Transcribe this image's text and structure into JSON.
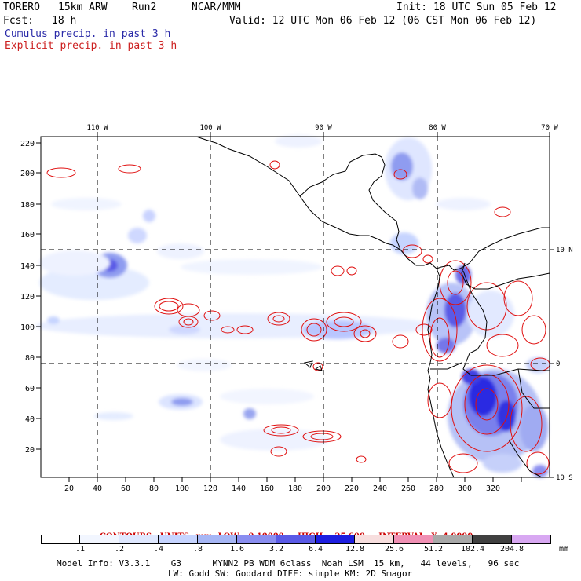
{
  "header": {
    "model": "TORERO",
    "resolution": "15km ARW",
    "run": "Run2",
    "org": "NCAR/MMM",
    "init": "Init: 18 UTC Sun 05 Feb 12",
    "fcst_label": "Fcst:",
    "fcst_value": "18 h",
    "valid": "Valid: 12 UTC Mon 06 Feb 12 (06 CST Mon 06 Feb 12)",
    "cumulus": "Cumulus precip. in past 3 h",
    "explicit": "Explicit precip. in past 3 h"
  },
  "map": {
    "lon_labels": [
      "110 W",
      "100 W",
      "90 W",
      "80 W",
      "70 W"
    ],
    "lat_labels": [
      "10 N",
      "0",
      "10 S"
    ],
    "y_ticks": [
      "220",
      "200",
      "180",
      "160",
      "140",
      "120",
      "100",
      "80",
      "60",
      "40",
      "20"
    ],
    "x_ticks": [
      "20",
      "40",
      "60",
      "80",
      "100",
      "120",
      "140",
      "160",
      "180",
      "200",
      "220",
      "240",
      "260",
      "280",
      "300",
      "320"
    ],
    "colors": {
      "cumulus": "#2a2aa8",
      "explicit": "#e01010",
      "coast": "#000000"
    }
  },
  "contours": {
    "label": "CONTOURS:",
    "units": "UNITS=mm",
    "low": "LOW= 0.10000",
    "high": "HIGH=  25.600",
    "interval": "INTERVAL=X  4.0000"
  },
  "legend": {
    "labels": [
      ".1",
      ".2",
      ".4",
      ".8",
      "1.6",
      "3.2",
      "6.4",
      "12.8",
      "25.6",
      "51.2",
      "102.4",
      "204.8"
    ],
    "colors": [
      "#ffffff",
      "#f2f6ff",
      "#dfe8ff",
      "#c6d4ff",
      "#a6b6f5",
      "#8a8ef0",
      "#5a5ae6",
      "#1e1ee0",
      "#f7dede",
      "#f090b4",
      "#a8a8a8",
      "#404040",
      "#d8a8f2"
    ],
    "unit": "mm"
  },
  "footer": {
    "line1": "Model Info: V3.3.1    G3      MYNN2 PB WDM 6class  Noah LSM  15 km,   44 levels,   96 sec",
    "line2": "LW: Godd SW: Goddard DIFF: simple KM: 2D Smagor"
  }
}
